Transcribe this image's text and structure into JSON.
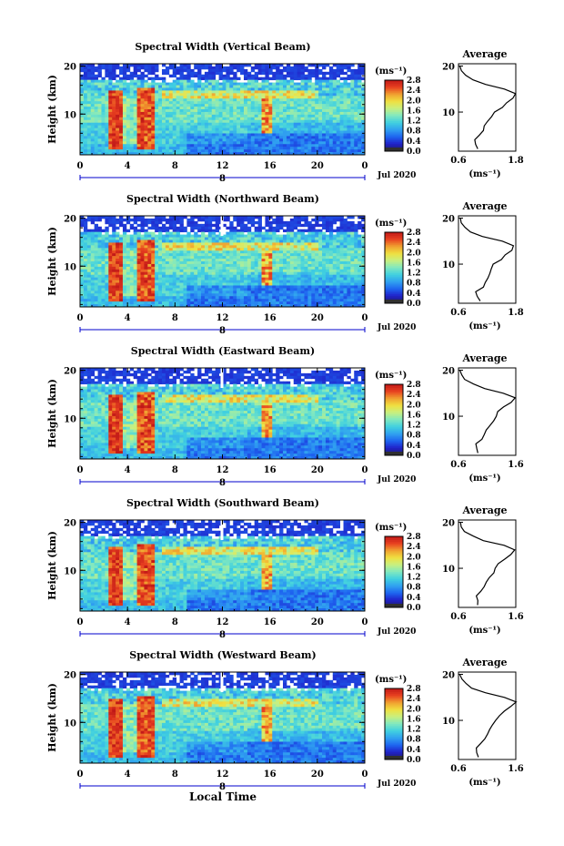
{
  "colors": {
    "background": "#ffffff",
    "axis": "#000000"
  },
  "colorscale": {
    "name": "jet",
    "stops": [
      "#202060",
      "#2020c8",
      "#1e64f0",
      "#30a0f0",
      "#40d0e0",
      "#80e8c0",
      "#c8f080",
      "#f0e040",
      "#f0a030",
      "#e84020",
      "#c01818"
    ]
  },
  "shared": {
    "xlabel": "Local Time",
    "date_label": "Jul 2020",
    "day_label": "8",
    "ylabel": "Height (km)",
    "unit_label": "(ms⁻¹)",
    "avg_title": "Average",
    "avg_xlabel": "(ms⁻¹)"
  },
  "chart_data": [
    {
      "type": "heatmap",
      "title": "Spectral Width (Vertical Beam)",
      "x_range": [
        0,
        24
      ],
      "y_range": [
        1.5,
        20.5
      ],
      "x_ticks": [
        "0",
        "4",
        "8",
        "12",
        "16",
        "20",
        "0"
      ],
      "y_ticks": [
        "20",
        "10"
      ],
      "colorbar": {
        "range": [
          0.0,
          2.8
        ],
        "ticks": [
          "2.8",
          "2.4",
          "2.0",
          "1.6",
          "1.2",
          "0.8",
          "0.4",
          "0.0"
        ]
      },
      "average": {
        "xlim": [
          0.6,
          1.8
        ],
        "x_ticks": [
          "0.6",
          "1.8"
        ],
        "profile": [
          [
            2.0,
            1.0
          ],
          [
            3.0,
            0.98
          ],
          [
            4.0,
            0.95
          ],
          [
            5.0,
            1.05
          ],
          [
            6.0,
            1.1
          ],
          [
            7.0,
            1.15
          ],
          [
            8.0,
            1.2
          ],
          [
            9.0,
            1.3
          ],
          [
            10.0,
            1.35
          ],
          [
            11.0,
            1.5
          ],
          [
            12.0,
            1.6
          ],
          [
            13.0,
            1.75
          ],
          [
            14.0,
            1.8
          ],
          [
            15.0,
            1.55
          ],
          [
            16.0,
            1.15
          ],
          [
            17.0,
            0.9
          ],
          [
            18.0,
            0.75
          ],
          [
            19.0,
            0.65
          ],
          [
            20.0,
            0.62
          ]
        ]
      }
    },
    {
      "type": "heatmap",
      "title": "Spectral Width (Northward Beam)",
      "x_range": [
        0,
        24
      ],
      "y_range": [
        1.5,
        20.5
      ],
      "x_ticks": [
        "0",
        "4",
        "8",
        "12",
        "16",
        "20",
        "0"
      ],
      "y_ticks": [
        "20",
        "10"
      ],
      "colorbar": {
        "range": [
          0.0,
          2.8
        ],
        "ticks": [
          "2.8",
          "2.4",
          "2.0",
          "1.6",
          "1.2",
          "0.8",
          "0.4",
          "0.0"
        ]
      },
      "average": {
        "xlim": [
          0.6,
          1.8
        ],
        "x_ticks": [
          "0.6",
          "1.8"
        ],
        "profile": [
          [
            2.0,
            1.05
          ],
          [
            3.0,
            1.0
          ],
          [
            4.0,
            0.95
          ],
          [
            5.0,
            1.1
          ],
          [
            6.0,
            1.15
          ],
          [
            7.0,
            1.2
          ],
          [
            8.0,
            1.25
          ],
          [
            9.0,
            1.3
          ],
          [
            10.0,
            1.35
          ],
          [
            11.0,
            1.5
          ],
          [
            12.0,
            1.6
          ],
          [
            13.0,
            1.7
          ],
          [
            14.0,
            1.75
          ],
          [
            15.0,
            1.5
          ],
          [
            16.0,
            1.1
          ],
          [
            17.0,
            0.85
          ],
          [
            18.0,
            0.75
          ],
          [
            19.0,
            0.65
          ],
          [
            20.0,
            0.62
          ]
        ]
      }
    },
    {
      "type": "heatmap",
      "title": "Spectral Width (Eastward Beam)",
      "x_range": [
        0,
        24
      ],
      "y_range": [
        1.5,
        20.5
      ],
      "x_ticks": [
        "0",
        "4",
        "8",
        "12",
        "16",
        "20",
        "0"
      ],
      "y_ticks": [
        "20",
        "10"
      ],
      "colorbar": {
        "range": [
          0.0,
          2.8
        ],
        "ticks": [
          "2.8",
          "2.4",
          "2.0",
          "1.6",
          "1.2",
          "0.8",
          "0.4",
          "0.0"
        ]
      },
      "average": {
        "xlim": [
          0.6,
          1.6
        ],
        "x_ticks": [
          "0.6",
          "1.6"
        ],
        "profile": [
          [
            2.0,
            0.95
          ],
          [
            3.0,
            0.9
          ],
          [
            4.0,
            0.9
          ],
          [
            5.0,
            1.0
          ],
          [
            6.0,
            1.05
          ],
          [
            7.0,
            1.1
          ],
          [
            8.0,
            1.15
          ],
          [
            9.0,
            1.2
          ],
          [
            10.0,
            1.25
          ],
          [
            11.0,
            1.3
          ],
          [
            12.0,
            1.4
          ],
          [
            13.0,
            1.5
          ],
          [
            14.0,
            1.6
          ],
          [
            15.0,
            1.4
          ],
          [
            16.0,
            1.05
          ],
          [
            17.0,
            0.85
          ],
          [
            18.0,
            0.72
          ],
          [
            19.0,
            0.65
          ],
          [
            20.0,
            0.62
          ]
        ]
      }
    },
    {
      "type": "heatmap",
      "title": "Spectral Width (Southward Beam)",
      "x_range": [
        0,
        24
      ],
      "y_range": [
        1.5,
        20.5
      ],
      "x_ticks": [
        "0",
        "4",
        "8",
        "12",
        "16",
        "20",
        "0"
      ],
      "y_ticks": [
        "20",
        "10"
      ],
      "colorbar": {
        "range": [
          0.0,
          2.8
        ],
        "ticks": [
          "2.8",
          "2.4",
          "2.0",
          "1.6",
          "1.2",
          "0.8",
          "0.4",
          "0.0"
        ]
      },
      "average": {
        "xlim": [
          0.6,
          1.6
        ],
        "x_ticks": [
          "0.6",
          "1.6"
        ],
        "profile": [
          [
            2.0,
            0.95
          ],
          [
            3.0,
            0.92
          ],
          [
            4.0,
            0.9
          ],
          [
            5.0,
            1.0
          ],
          [
            6.0,
            1.05
          ],
          [
            7.0,
            1.1
          ],
          [
            8.0,
            1.15
          ],
          [
            9.0,
            1.2
          ],
          [
            10.0,
            1.25
          ],
          [
            11.0,
            1.3
          ],
          [
            12.0,
            1.4
          ],
          [
            13.0,
            1.5
          ],
          [
            14.0,
            1.6
          ],
          [
            15.0,
            1.4
          ],
          [
            16.0,
            1.05
          ],
          [
            17.0,
            0.85
          ],
          [
            18.0,
            0.72
          ],
          [
            19.0,
            0.65
          ],
          [
            20.0,
            0.62
          ]
        ]
      }
    },
    {
      "type": "heatmap",
      "title": "Spectral Width (Westward Beam)",
      "x_range": [
        0,
        24
      ],
      "y_range": [
        1.5,
        20.5
      ],
      "x_ticks": [
        "0",
        "4",
        "8",
        "12",
        "16",
        "20",
        "0"
      ],
      "y_ticks": [
        "20",
        "10"
      ],
      "colorbar": {
        "range": [
          0.0,
          2.8
        ],
        "ticks": [
          "2.8",
          "2.4",
          "2.0",
          "1.6",
          "1.2",
          "0.8",
          "0.4",
          "0.0"
        ]
      },
      "average": {
        "xlim": [
          0.6,
          1.6
        ],
        "x_ticks": [
          "0.6",
          "1.6"
        ],
        "profile": [
          [
            2.0,
            0.95
          ],
          [
            3.0,
            0.9
          ],
          [
            4.0,
            0.9
          ],
          [
            5.0,
            1.0
          ],
          [
            6.0,
            1.05
          ],
          [
            7.0,
            1.1
          ],
          [
            8.0,
            1.15
          ],
          [
            9.0,
            1.2
          ],
          [
            10.0,
            1.25
          ],
          [
            11.0,
            1.3
          ],
          [
            12.0,
            1.4
          ],
          [
            13.0,
            1.5
          ],
          [
            14.0,
            1.6
          ],
          [
            15.0,
            1.4
          ],
          [
            16.0,
            1.05
          ],
          [
            17.0,
            0.85
          ],
          [
            18.0,
            0.72
          ],
          [
            19.0,
            0.65
          ],
          [
            20.0,
            0.62
          ]
        ]
      }
    }
  ]
}
